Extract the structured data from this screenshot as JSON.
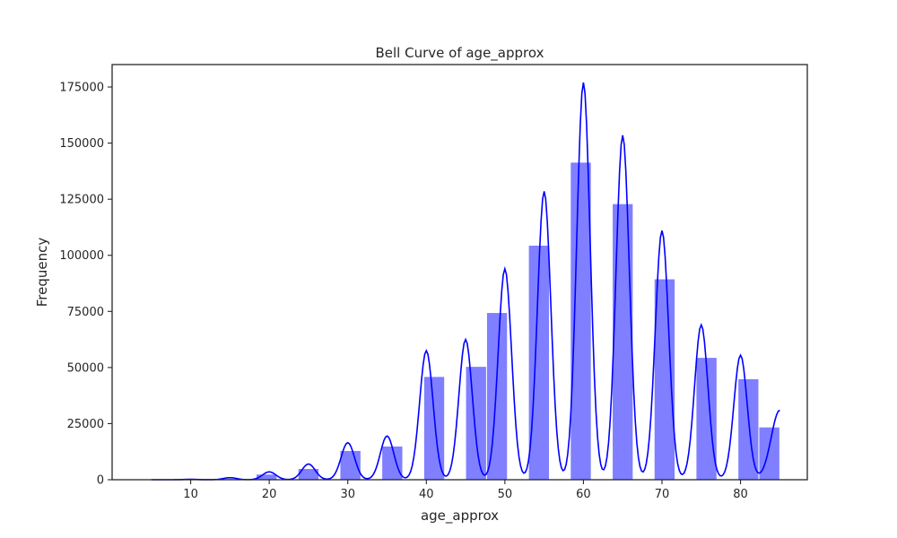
{
  "chart_data": {
    "type": "bar",
    "title": "Bell Curve of age_approx",
    "xlabel": "age_approx",
    "ylabel": "Frequency",
    "xlim": [
      0,
      88.5
    ],
    "ylim": [
      0,
      185000
    ],
    "xticks": [
      10,
      20,
      30,
      40,
      50,
      60,
      70,
      80
    ],
    "yticks": [
      0,
      25000,
      50000,
      75000,
      100000,
      125000,
      150000,
      175000
    ],
    "grid": false,
    "bar_color": "#0000ff",
    "bar_opacity": 0.5,
    "line_color": "#0000ff",
    "bins": [
      {
        "x0": 5.0,
        "x1": 7.67,
        "value": 100
      },
      {
        "x0": 7.67,
        "x1": 10.33,
        "value": 150
      },
      {
        "x0": 10.33,
        "x1": 13.0,
        "value": 200
      },
      {
        "x0": 13.0,
        "x1": 15.67,
        "value": 500
      },
      {
        "x0": 15.67,
        "x1": 18.33,
        "value": 0
      },
      {
        "x0": 18.33,
        "x1": 21.0,
        "value": 2500
      },
      {
        "x0": 21.0,
        "x1": 23.67,
        "value": 0
      },
      {
        "x0": 23.67,
        "x1": 26.33,
        "value": 5000
      },
      {
        "x0": 26.33,
        "x1": 29.0,
        "value": 0
      },
      {
        "x0": 29.0,
        "x1": 31.67,
        "value": 13000
      },
      {
        "x0": 31.67,
        "x1": 34.33,
        "value": 0
      },
      {
        "x0": 34.33,
        "x1": 37.0,
        "value": 15000
      },
      {
        "x0": 37.0,
        "x1": 39.67,
        "value": 0
      },
      {
        "x0": 39.67,
        "x1": 42.33,
        "value": 46000
      },
      {
        "x0": 42.33,
        "x1": 45.0,
        "value": 0
      },
      {
        "x0": 45.0,
        "x1": 47.67,
        "value": 50500
      },
      {
        "x0": 47.67,
        "x1": 50.33,
        "value": 74500
      },
      {
        "x0": 50.33,
        "x1": 53.0,
        "value": 0
      },
      {
        "x0": 53.0,
        "x1": 55.67,
        "value": 104500
      },
      {
        "x0": 55.67,
        "x1": 58.33,
        "value": 0
      },
      {
        "x0": 58.33,
        "x1": 61.0,
        "value": 141500
      },
      {
        "x0": 61.0,
        "x1": 63.67,
        "value": 0
      },
      {
        "x0": 63.67,
        "x1": 66.33,
        "value": 123000
      },
      {
        "x0": 66.33,
        "x1": 69.0,
        "value": 0
      },
      {
        "x0": 69.0,
        "x1": 71.67,
        "value": 89500
      },
      {
        "x0": 71.67,
        "x1": 74.33,
        "value": 0
      },
      {
        "x0": 74.33,
        "x1": 77.0,
        "value": 54500
      },
      {
        "x0": 77.0,
        "x1": 79.67,
        "value": 0
      },
      {
        "x0": 79.67,
        "x1": 82.33,
        "value": 45000
      },
      {
        "x0": 82.33,
        "x1": 85.0,
        "value": 23500
      }
    ],
    "kde_peaks": [
      {
        "x": 5,
        "y": 0,
        "w": 0.8
      },
      {
        "x": 10,
        "y": 200,
        "w": 0.8
      },
      {
        "x": 15,
        "y": 900,
        "w": 0.85
      },
      {
        "x": 20,
        "y": 3500,
        "w": 0.85
      },
      {
        "x": 25,
        "y": 7000,
        "w": 0.85
      },
      {
        "x": 30,
        "y": 16500,
        "w": 0.85
      },
      {
        "x": 35,
        "y": 19500,
        "w": 0.85
      },
      {
        "x": 40,
        "y": 57500,
        "w": 0.85
      },
      {
        "x": 45,
        "y": 62500,
        "w": 0.85
      },
      {
        "x": 50,
        "y": 94000,
        "w": 0.85
      },
      {
        "x": 55,
        "y": 128500,
        "w": 0.85
      },
      {
        "x": 60,
        "y": 177000,
        "w": 0.85
      },
      {
        "x": 65,
        "y": 153500,
        "w": 0.85
      },
      {
        "x": 70,
        "y": 111000,
        "w": 0.85
      },
      {
        "x": 75,
        "y": 69000,
        "w": 0.85
      },
      {
        "x": 80,
        "y": 55500,
        "w": 0.85
      },
      {
        "x": 85,
        "y": 31000,
        "w": 1.1
      }
    ]
  }
}
